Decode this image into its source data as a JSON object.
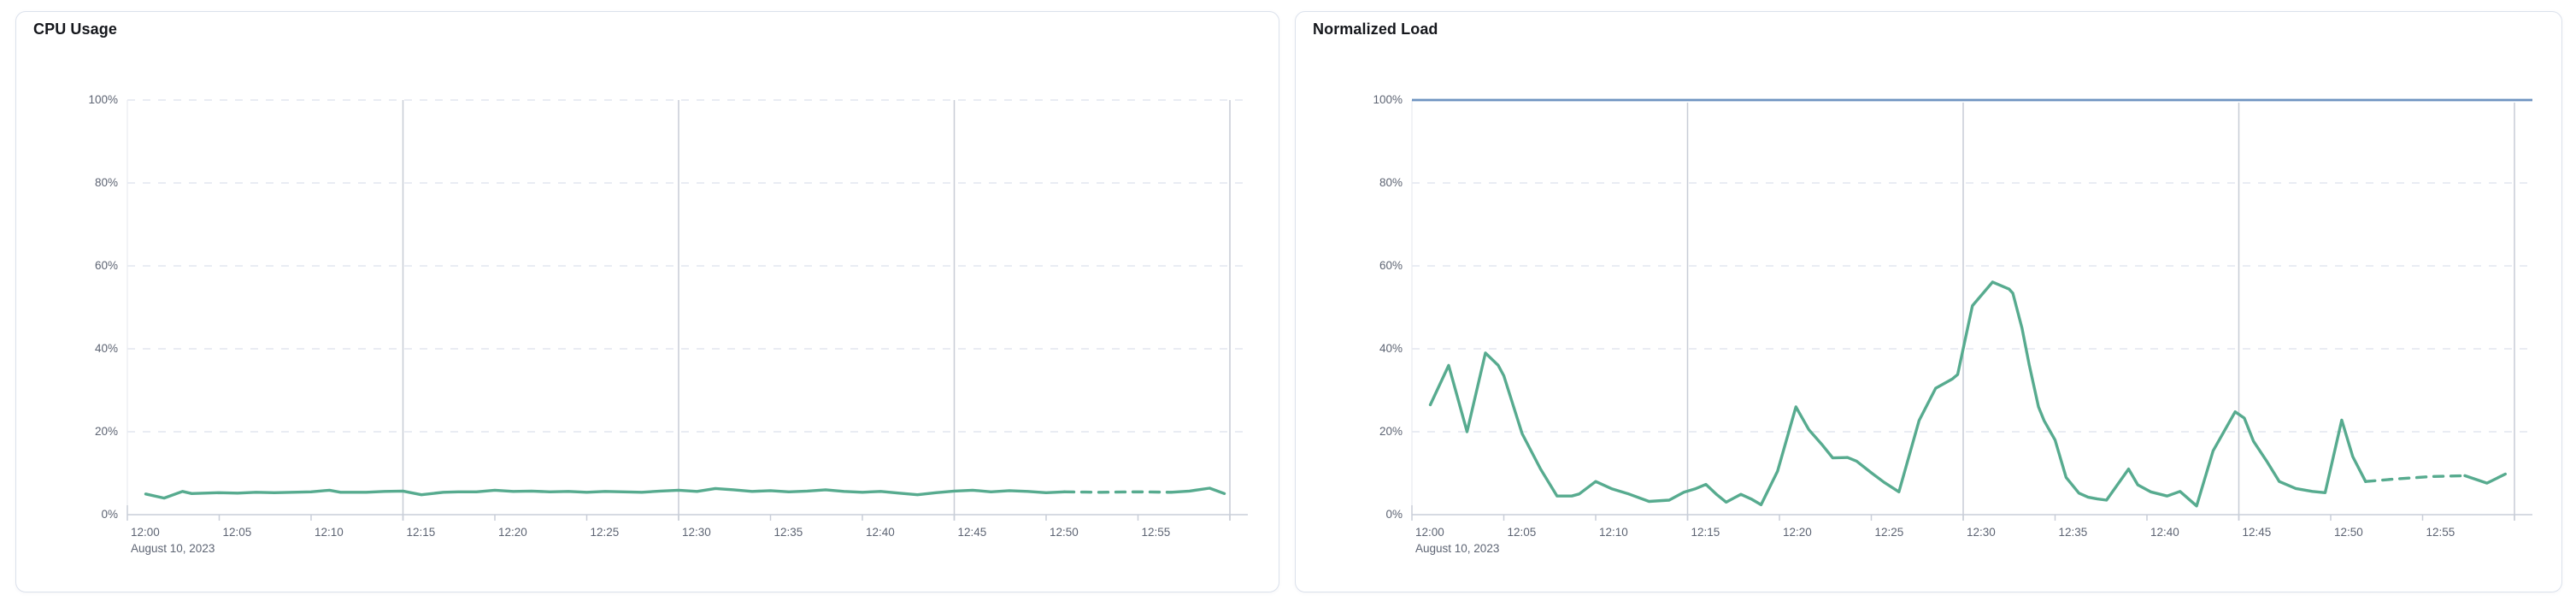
{
  "colors": {
    "series_green": "#57ab8f",
    "threshold_blue": "#6f94c1",
    "grid_dashed": "#e2e6ef",
    "grid_solid": "#c7ccd6",
    "axis_line": "#c9ced8",
    "label_text": "#5d6473",
    "title_text": "#15171c",
    "card_border": "#dbe1ec"
  },
  "chart_data": [
    {
      "type": "line",
      "title": "CPU Usage",
      "ylabel": "percent",
      "ylim": [
        0,
        100
      ],
      "grid": "horizontal-dashed, vertical solid each 15 min",
      "legend_position": "none",
      "y_axis": {
        "labels": [
          "100%",
          "80%",
          "60%",
          "40%",
          "20%",
          "0%"
        ],
        "values": [
          100,
          80,
          60,
          40,
          20,
          0
        ]
      },
      "x_axis": {
        "labels": [
          "12:00",
          "12:05",
          "12:10",
          "12:15",
          "12:20",
          "12:25",
          "12:30",
          "12:35",
          "12:40",
          "12:45",
          "12:50",
          "12:55"
        ],
        "date_label": "August 10, 2023",
        "start": "12:00",
        "end": "13:01",
        "minutes_span": 61,
        "gridline_minutes": [
          15,
          30,
          45,
          60
        ],
        "tick_every_minutes": 5
      },
      "series": {
        "name": "cpu-usage-percent",
        "color": "#57ab8f",
        "solid": [
          [
            1,
            5.0
          ],
          [
            2,
            4.0
          ],
          [
            3,
            5.6
          ],
          [
            3.5,
            5.1
          ],
          [
            5,
            5.3
          ],
          [
            6,
            5.2
          ],
          [
            7,
            5.4
          ],
          [
            8,
            5.3
          ],
          [
            9,
            5.4
          ],
          [
            10,
            5.5
          ],
          [
            11,
            5.9
          ],
          [
            11.6,
            5.4
          ],
          [
            13,
            5.4
          ],
          [
            14,
            5.6
          ],
          [
            15,
            5.7
          ],
          [
            16,
            4.8
          ],
          [
            17.2,
            5.4
          ],
          [
            18,
            5.5
          ],
          [
            19,
            5.5
          ],
          [
            20,
            5.9
          ],
          [
            21,
            5.6
          ],
          [
            22,
            5.7
          ],
          [
            23,
            5.5
          ],
          [
            24,
            5.6
          ],
          [
            25,
            5.4
          ],
          [
            26,
            5.6
          ],
          [
            27,
            5.5
          ],
          [
            28,
            5.4
          ],
          [
            29,
            5.7
          ],
          [
            30,
            5.9
          ],
          [
            31,
            5.6
          ],
          [
            32,
            6.3
          ],
          [
            33,
            6.0
          ],
          [
            34,
            5.6
          ],
          [
            35,
            5.8
          ],
          [
            36,
            5.5
          ],
          [
            37,
            5.7
          ],
          [
            38,
            6.0
          ],
          [
            39,
            5.6
          ],
          [
            40,
            5.4
          ],
          [
            41,
            5.6
          ],
          [
            42,
            5.2
          ],
          [
            43,
            4.8
          ],
          [
            44,
            5.3
          ],
          [
            45,
            5.7
          ],
          [
            46,
            5.9
          ],
          [
            47,
            5.5
          ],
          [
            48,
            5.8
          ],
          [
            49,
            5.6
          ],
          [
            50,
            5.3
          ],
          [
            51,
            5.5
          ]
        ],
        "dashed": [
          [
            51,
            5.5
          ],
          [
            53,
            5.4
          ],
          [
            55,
            5.5
          ],
          [
            56.8,
            5.4
          ]
        ],
        "tail": [
          [
            56.8,
            5.4
          ],
          [
            57.8,
            5.7
          ],
          [
            58.9,
            6.4
          ],
          [
            59.7,
            5.1
          ]
        ]
      }
    },
    {
      "type": "line",
      "title": "Normalized Load",
      "ylabel": "percent",
      "ylim": [
        0,
        100
      ],
      "grid": "horizontal-dashed, vertical solid each 15 min",
      "legend_position": "none",
      "threshold": {
        "value": 100,
        "color": "#6f94c1"
      },
      "y_axis": {
        "labels": [
          "100%",
          "80%",
          "60%",
          "40%",
          "20%",
          "0%"
        ],
        "values": [
          100,
          80,
          60,
          40,
          20,
          0
        ]
      },
      "x_axis": {
        "labels": [
          "12:00",
          "12:05",
          "12:10",
          "12:15",
          "12:20",
          "12:25",
          "12:30",
          "12:35",
          "12:40",
          "12:45",
          "12:50",
          "12:55"
        ],
        "date_label": "August 10, 2023",
        "start": "12:00",
        "end": "13:01",
        "minutes_span": 61,
        "gridline_minutes": [
          15,
          30,
          45,
          60
        ],
        "tick_every_minutes": 5
      },
      "series": {
        "name": "normalized-load-percent",
        "color": "#57ab8f",
        "solid": [
          [
            1,
            26.5
          ],
          [
            2,
            36
          ],
          [
            3,
            20
          ],
          [
            4,
            39
          ],
          [
            4.7,
            36
          ],
          [
            5,
            33.5
          ],
          [
            6,
            19.5
          ],
          [
            7,
            11
          ],
          [
            7.9,
            4.5
          ],
          [
            8.7,
            4.5
          ],
          [
            9.1,
            5
          ],
          [
            10,
            8
          ],
          [
            10.9,
            6.2
          ],
          [
            11.8,
            5
          ],
          [
            12.9,
            3.2
          ],
          [
            14,
            3.5
          ],
          [
            14.8,
            5.4
          ],
          [
            15.4,
            6.2
          ],
          [
            16,
            7.3
          ],
          [
            16.6,
            4.8
          ],
          [
            17.1,
            3
          ],
          [
            17.9,
            4.9
          ],
          [
            18.5,
            3.7
          ],
          [
            19,
            2.4
          ],
          [
            19.9,
            10.5
          ],
          [
            20.9,
            26
          ],
          [
            21.6,
            20.5
          ],
          [
            22.3,
            17
          ],
          [
            22.9,
            13.7
          ],
          [
            23.7,
            13.8
          ],
          [
            24.2,
            12.9
          ],
          [
            25,
            10.1
          ],
          [
            25.7,
            7.8
          ],
          [
            26.5,
            5.5
          ],
          [
            27.6,
            22.7
          ],
          [
            28.5,
            30.5
          ],
          [
            29.4,
            32.7
          ],
          [
            29.7,
            33.8
          ],
          [
            30.5,
            50.4
          ],
          [
            31.6,
            56.1
          ],
          [
            32.5,
            54.4
          ],
          [
            32.7,
            53.4
          ],
          [
            33.2,
            45
          ],
          [
            33.6,
            36
          ],
          [
            34.1,
            26
          ],
          [
            34.4,
            22.7
          ],
          [
            35,
            18
          ],
          [
            35.6,
            9
          ],
          [
            36.3,
            5.2
          ],
          [
            36.8,
            4.2
          ],
          [
            37.3,
            3.8
          ],
          [
            37.8,
            3.5
          ],
          [
            39,
            11
          ],
          [
            39.5,
            7.2
          ],
          [
            40.2,
            5.5
          ],
          [
            41.1,
            4.5
          ],
          [
            41.8,
            5.6
          ],
          [
            42.7,
            2.1
          ],
          [
            43.6,
            15.4
          ],
          [
            44.8,
            24.8
          ],
          [
            45.3,
            23.3
          ],
          [
            45.8,
            17.7
          ],
          [
            46.5,
            13
          ],
          [
            47.2,
            8
          ],
          [
            48.1,
            6.3
          ],
          [
            49,
            5.6
          ],
          [
            49.7,
            5.3
          ],
          [
            50.6,
            22.8
          ],
          [
            51.2,
            14
          ],
          [
            51.9,
            8
          ]
        ],
        "dashed": [
          [
            51.9,
            8
          ],
          [
            53.5,
            8.6
          ],
          [
            55.5,
            9.2
          ],
          [
            57.3,
            9.4
          ]
        ],
        "tail": [
          [
            57.3,
            9.4
          ],
          [
            58.5,
            7.6
          ],
          [
            59.5,
            9.8
          ]
        ]
      }
    }
  ]
}
